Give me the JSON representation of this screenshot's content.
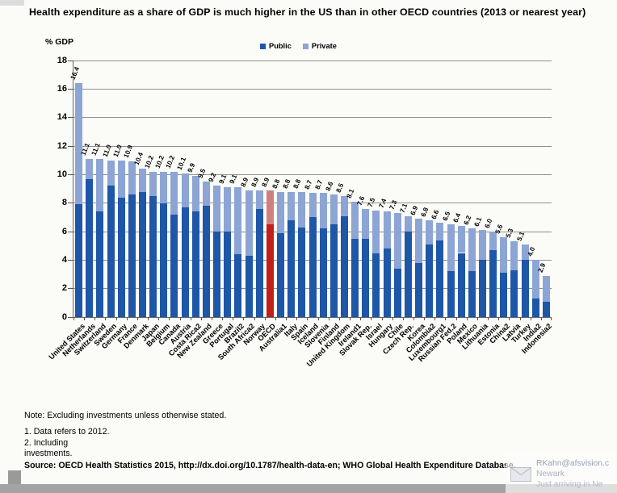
{
  "title": "Health expenditure as a share of GDP is much higher in the US than in other OECD countries (2013 or nearest year)",
  "y_axis_title": "% GDP",
  "legend": {
    "public_label": "Public",
    "private_label": "Private"
  },
  "colors": {
    "public": "#1e56a8",
    "private": "#8ca5d4",
    "oecd_public": "#c0201a",
    "oecd_private": "#d07f7f",
    "gridline": "#8f8f8f"
  },
  "chart_data": {
    "type": "bar",
    "stacked": true,
    "title": "Health expenditure as a share of GDP is much higher in the US than in other OECD countries (2013 or nearest year)",
    "xlabel": "",
    "ylabel": "% GDP",
    "ylim": [
      0,
      18
    ],
    "ytick_step": 2,
    "grid": true,
    "legend_position": "top-center",
    "highlight_category": "OECD",
    "categories": [
      "United States",
      "Netherlands",
      "Switzerland",
      "Sweden",
      "Germany",
      "France",
      "Denmark",
      "Japan",
      "Belgium",
      "Canada",
      "Austria",
      "Costa Rica2",
      "New Zealand",
      "Greece",
      "Portugal",
      "Brazil2",
      "South Africa2",
      "Norway",
      "OECD",
      "Australia1",
      "Italy",
      "Spain",
      "Iceland",
      "Slovenia",
      "Finland",
      "United Kingdom",
      "Ireland1",
      "Slovak Rep.",
      "Israel",
      "Hungary",
      "Chile",
      "Czech Rep.",
      "Korea",
      "Colombia2",
      "Luxembourg1",
      "Russian Fed.2",
      "Poland",
      "Mexico",
      "Lithuania",
      "Estonia",
      "China2",
      "Latvia",
      "Turkey",
      "India2",
      "Indonesia2"
    ],
    "totals": [
      16.4,
      11.1,
      11.1,
      11.0,
      11.0,
      10.9,
      10.4,
      10.2,
      10.2,
      10.2,
      10.1,
      9.9,
      9.5,
      9.2,
      9.1,
      9.1,
      8.9,
      8.9,
      8.9,
      8.8,
      8.8,
      8.8,
      8.7,
      8.7,
      8.6,
      8.5,
      8.1,
      7.6,
      7.5,
      7.4,
      7.3,
      7.1,
      6.9,
      6.8,
      6.6,
      6.5,
      6.4,
      6.2,
      6.1,
      6.0,
      5.6,
      5.3,
      5.1,
      4.0,
      2.9
    ],
    "series": [
      {
        "name": "Public",
        "values": [
          7.9,
          9.7,
          7.4,
          9.2,
          8.4,
          8.6,
          8.8,
          8.5,
          8.0,
          7.2,
          7.7,
          7.4,
          7.8,
          6.0,
          6.0,
          4.4,
          4.3,
          7.6,
          6.5,
          5.9,
          6.8,
          6.3,
          7.0,
          6.2,
          6.5,
          7.1,
          5.5,
          5.5,
          4.5,
          4.8,
          3.4,
          6.0,
          3.8,
          5.1,
          5.4,
          3.2,
          4.5,
          3.2,
          4.0,
          4.7,
          3.1,
          3.3,
          4.0,
          1.3,
          1.1
        ]
      },
      {
        "name": "Private",
        "values": [
          8.5,
          1.4,
          3.7,
          1.8,
          2.6,
          2.3,
          1.6,
          1.7,
          2.2,
          3.0,
          2.4,
          2.5,
          1.7,
          3.2,
          3.1,
          4.7,
          4.6,
          1.3,
          2.4,
          2.9,
          2.0,
          2.5,
          1.7,
          2.5,
          2.1,
          1.4,
          2.6,
          2.1,
          3.0,
          2.6,
          3.9,
          1.1,
          3.1,
          1.7,
          1.2,
          3.3,
          1.9,
          3.0,
          2.1,
          1.3,
          2.5,
          2.0,
          1.1,
          2.7,
          1.8
        ]
      }
    ]
  },
  "notes": {
    "note": "Note: Excluding investments unless otherwise stated.",
    "footnote1": "1. Data refers to 2012.",
    "footnote2_line1": "2. Including",
    "footnote2_line2": "investments.",
    "source": "Source: OECD Health Statistics 2015, http://dx.doi.org/10.1787/health-data-en; WHO Global Health Expenditure Database."
  },
  "toast": {
    "sender": "RKahn@afsvision.c",
    "subject": "Newark",
    "preview": "Just arriving in Ne",
    "icon": "envelope-icon"
  }
}
